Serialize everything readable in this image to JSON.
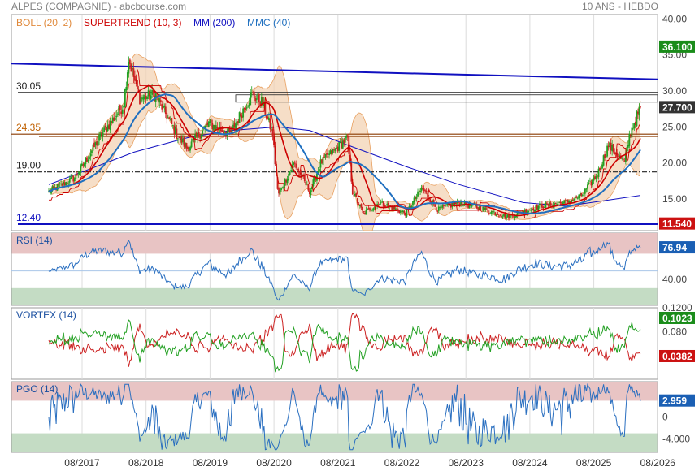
{
  "header": {
    "title": "ALPES (COMPAGNIE) - abcbourse.com",
    "period": "10 ANS - HEBDO"
  },
  "colors": {
    "boll": "#e8a060",
    "boll_fill": "#f3d3b4",
    "supertrend": "#cc0000",
    "mm200": "#1010c0",
    "mmc40": "#2070c0",
    "candle_up": "#22a022",
    "candle_down": "#cc2222",
    "rsi_line": "#2a6fc0",
    "vortex_plus": "#22a022",
    "vortex_minus": "#cc2222",
    "zone_high": "#e8c4c4",
    "zone_low": "#c4dcc4",
    "badge_green": "#1a8c1a",
    "badge_red": "#cc1111",
    "badge_blue": "#1a5fb4"
  },
  "chart_data": [
    {
      "type": "candlestick",
      "panel": "price",
      "legend": [
        {
          "label": "BOLL (20, 2)",
          "color": "#e08a3c"
        },
        {
          "label": "SUPERTREND (10, 3)",
          "color": "#cc0000"
        },
        {
          "label": "MM (200)",
          "color": "#1010c0"
        },
        {
          "label": "MMC (40)",
          "color": "#2070c0"
        }
      ],
      "x_ticks": [
        "08/2017",
        "08/2018",
        "08/2019",
        "08/2020",
        "08/2021",
        "08/2022",
        "08/2023",
        "08/2024",
        "08/2025",
        "08/2026"
      ],
      "y_ticks": [
        "40.00",
        "35.00",
        "30.00",
        "25.00",
        "20.00",
        "15.00"
      ],
      "ylim": [
        10.6,
        40.6
      ],
      "levels": [
        {
          "label": "30.05",
          "value": 29.8
        },
        {
          "label": "24.35",
          "value": 24.0
        },
        {
          "label": "19.00",
          "value": 18.75
        },
        {
          "label": "12.40",
          "value": 11.5
        }
      ],
      "badges": [
        {
          "text": "36.100",
          "value": 36.1,
          "color": "green"
        },
        {
          "text": "27.700",
          "value": 27.7,
          "color": "dark"
        },
        {
          "text": "11.540",
          "value": 11.54,
          "color": "red"
        }
      ],
      "anchors": [
        {
          "date": "2016-08",
          "close": 16.0
        },
        {
          "date": "2017-01",
          "close": 18.0
        },
        {
          "date": "2017-06",
          "close": 24.0
        },
        {
          "date": "2017-10",
          "close": 28.0
        },
        {
          "date": "2017-11",
          "close": 34.5
        },
        {
          "date": "2018-01",
          "close": 29.0
        },
        {
          "date": "2018-04",
          "close": 29.5
        },
        {
          "date": "2018-08",
          "close": 24.0
        },
        {
          "date": "2018-10",
          "close": 22.0
        },
        {
          "date": "2019-02",
          "close": 25.5
        },
        {
          "date": "2019-06",
          "close": 24.0
        },
        {
          "date": "2019-10",
          "close": 29.5
        },
        {
          "date": "2019-12",
          "close": 28.5
        },
        {
          "date": "2020-02",
          "close": 24.0
        },
        {
          "date": "2020-03",
          "close": 15.5
        },
        {
          "date": "2020-06",
          "close": 20.0
        },
        {
          "date": "2020-09",
          "close": 16.0
        },
        {
          "date": "2020-11",
          "close": 20.0
        },
        {
          "date": "2021-02",
          "close": 22.0
        },
        {
          "date": "2021-04",
          "close": 23.5
        },
        {
          "date": "2021-05",
          "close": 16.0
        },
        {
          "date": "2021-07",
          "close": 13.0
        },
        {
          "date": "2021-10",
          "close": 14.5
        },
        {
          "date": "2022-03",
          "close": 13.0
        },
        {
          "date": "2022-06",
          "close": 16.5
        },
        {
          "date": "2022-09",
          "close": 13.5
        },
        {
          "date": "2023-01",
          "close": 14.5
        },
        {
          "date": "2023-06",
          "close": 13.5
        },
        {
          "date": "2023-10",
          "close": 12.5
        },
        {
          "date": "2024-04",
          "close": 14.0
        },
        {
          "date": "2024-09",
          "close": 14.5
        },
        {
          "date": "2024-12",
          "close": 15.5
        },
        {
          "date": "2025-03",
          "close": 18.5
        },
        {
          "date": "2025-05",
          "close": 22.5
        },
        {
          "date": "2025-08",
          "close": 20.0
        },
        {
          "date": "2025-09",
          "close": 24.0
        },
        {
          "date": "2025-11",
          "close": 27.7
        }
      ],
      "mm200": [
        {
          "date": "2016-08",
          "value": 17.0
        },
        {
          "date": "2017-12",
          "value": 21.5
        },
        {
          "date": "2018-10",
          "value": 23.5
        },
        {
          "date": "2019-06",
          "value": 24.5
        },
        {
          "date": "2020-03",
          "value": 25.0
        },
        {
          "date": "2020-09",
          "value": 24.5
        },
        {
          "date": "2021-04",
          "value": 22.5
        },
        {
          "date": "2022-03",
          "value": 19.5
        },
        {
          "date": "2023-01",
          "value": 17.0
        },
        {
          "date": "2024-01",
          "value": 14.5
        },
        {
          "date": "2024-09",
          "value": 14.0
        },
        {
          "date": "2025-11",
          "value": 15.5
        }
      ],
      "trendline": [
        {
          "date": "2016-08",
          "value": 33.8
        },
        {
          "date": "2025-12",
          "value": 31.6
        }
      ]
    },
    {
      "type": "line",
      "panel": "rsi",
      "legend": "RSI (14)",
      "y_ticks": [
        "40.00"
      ],
      "ylim": [
        10,
        94
      ],
      "zones": [
        {
          "from": 70,
          "to": 94,
          "color": "high"
        },
        {
          "from": 10,
          "to": 30,
          "color": "low"
        }
      ],
      "badge": {
        "text": "76.94",
        "value": 76.94,
        "color": "blue"
      }
    },
    {
      "type": "line",
      "panel": "vortex",
      "legend": "VORTEX (14)",
      "y_ticks": [
        "0.1200",
        "0.080",
        "0.040"
      ],
      "ylim": [
        0.0,
        0.12
      ],
      "series": [
        {
          "color": "green"
        },
        {
          "color": "red"
        }
      ],
      "badges": [
        {
          "text": "0.1023",
          "value": 0.1023,
          "color": "green"
        },
        {
          "text": "0.0382",
          "value": 0.0382,
          "color": "red"
        }
      ]
    },
    {
      "type": "line",
      "panel": "pgo",
      "legend": "PGO (14)",
      "y_ticks": [
        "0",
        "-4.000"
      ],
      "ylim": [
        -6.5,
        6.5
      ],
      "zones": [
        {
          "from": 3,
          "to": 6.5,
          "color": "high"
        },
        {
          "from": -6.5,
          "to": -3,
          "color": "low"
        }
      ],
      "badge": {
        "text": "2.959",
        "value": 2.959,
        "color": "blue"
      }
    }
  ]
}
